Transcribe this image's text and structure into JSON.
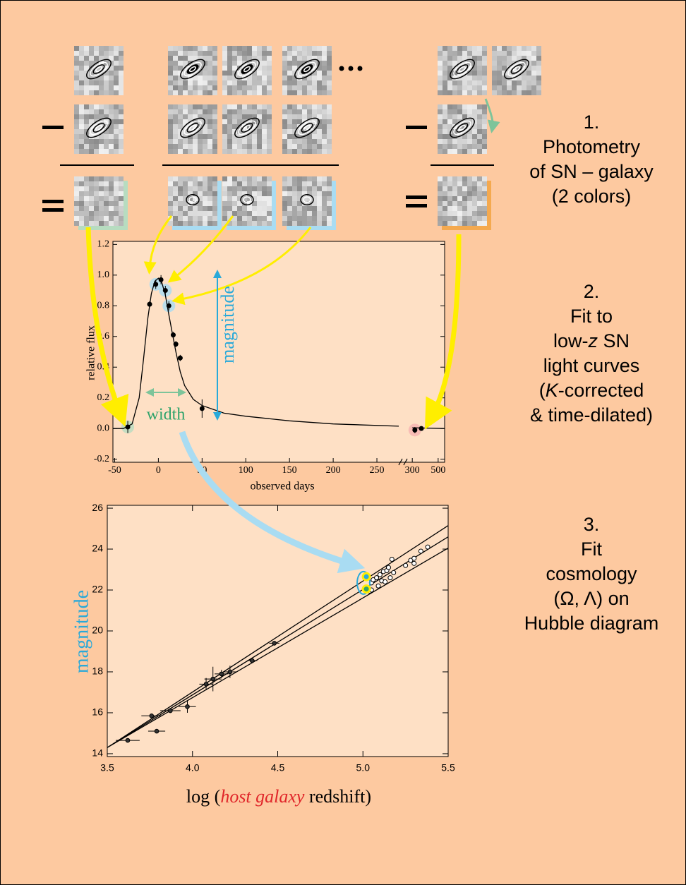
{
  "steps": [
    {
      "number": "1.",
      "lines": [
        "Photometry",
        "of SN – galaxy",
        "(2 colors)"
      ]
    },
    {
      "number": "2.",
      "lines": [
        "Fit to",
        {
          "parts": [
            "low-",
            "z",
            " SN"
          ]
        },
        "light curves",
        {
          "parts": [
            "(",
            "K",
            "-corrected"
          ]
        },
        "& time-dilated)"
      ]
    },
    {
      "number": "3.",
      "lines": [
        "Fit",
        "cosmology",
        "(Ω, Λ) on",
        "Hubble diagram"
      ]
    }
  ],
  "chart_data": [
    {
      "type": "scatter",
      "xlabel": "observed days",
      "ylabel": "relative flux",
      "annotations": [
        "magnitude",
        "width"
      ],
      "xlim_segments": [
        [
          -52,
          275
        ],
        [
          250,
          550
        ]
      ],
      "xticks": [
        -50,
        0,
        50,
        100,
        150,
        200,
        250,
        300,
        500
      ],
      "ylim": [
        -0.22,
        1.22
      ],
      "yticks": [
        -0.2,
        {
          "value": 0,
          "label": "0.0"
        },
        0.2,
        0.4,
        0.6,
        0.8,
        {
          "value": 1,
          "label": "1.0"
        },
        1.2
      ],
      "x": [
        -35,
        -10,
        -3,
        3,
        8,
        12,
        17,
        20,
        25,
        50,
        320,
        370
      ],
      "values": [
        0.01,
        0.81,
        0.94,
        0.97,
        0.9,
        0.8,
        0.61,
        0.55,
        0.46,
        0.13,
        -0.01,
        0.0
      ],
      "errors": [
        0.04,
        0.02,
        0.03,
        0.03,
        0.03,
        0.03,
        0.02,
        0.02,
        0.02,
        0.06,
        0.02,
        0.01
      ],
      "fit": {
        "x": [
          -52,
          -40,
          -30,
          -22,
          -17,
          -12,
          -8,
          -4,
          0,
          4,
          8,
          12,
          16,
          20,
          25,
          30,
          40,
          50,
          75,
          100,
          150,
          200,
          250,
          275,
          278,
          300,
          550
        ],
        "values": [
          0.0,
          0.0,
          0.03,
          0.2,
          0.45,
          0.72,
          0.88,
          0.96,
          0.98,
          0.95,
          0.87,
          0.74,
          0.62,
          0.5,
          0.37,
          0.28,
          0.19,
          0.15,
          0.1,
          0.08,
          0.05,
          0.03,
          0.02,
          0.015,
          null,
          0.005,
          0.0
        ]
      },
      "color": "#000000"
    },
    {
      "type": "scatter",
      "xlabel": {
        "parts": [
          "log (",
          "host galaxy",
          " redshift)"
        ]
      },
      "ylabel": "magnitude",
      "xlim": [
        3.5,
        5.5
      ],
      "ylim": [
        13.86,
        26.14
      ],
      "xticks": [
        3.5,
        {
          "value": 4,
          "label": "4.0"
        },
        4.5,
        {
          "value": 5,
          "label": "5.0"
        },
        5.5
      ],
      "yticks": [
        14,
        16,
        18,
        20,
        22,
        24,
        26
      ],
      "low_z": {
        "x": [
          3.62,
          3.76,
          3.79,
          3.87,
          3.97,
          4.08,
          4.12,
          4.17,
          4.22,
          4.35,
          4.48
        ],
        "values": [
          14.65,
          15.85,
          15.1,
          16.1,
          16.3,
          17.4,
          17.65,
          17.9,
          18.0,
          18.55,
          19.4
        ],
        "xerr": [
          0.07,
          0.06,
          0.05,
          0.06,
          0.05,
          0.04,
          0.05,
          0.04,
          0.04,
          0.03,
          0.03
        ],
        "yerr": [
          0.1,
          0.1,
          0.1,
          0.1,
          0.3,
          0.3,
          0.6,
          0.2,
          0.3,
          0.1,
          0.1
        ]
      },
      "high_z": {
        "x": [
          5.04,
          5.05,
          5.05,
          5.06,
          5.08,
          5.09,
          5.1,
          5.11,
          5.12,
          5.13,
          5.14,
          5.15,
          5.16,
          5.17,
          5.18,
          5.25,
          5.28,
          5.3,
          5.3,
          5.34,
          5.38
        ],
        "values": [
          21.95,
          22.35,
          22.0,
          22.5,
          22.6,
          22.2,
          22.75,
          22.45,
          22.9,
          22.4,
          22.95,
          23.1,
          22.6,
          23.5,
          22.85,
          23.2,
          23.45,
          23.3,
          23.55,
          23.9,
          24.1
        ]
      },
      "highlighted": {
        "x": [
          5.02,
          5.02
        ],
        "values": [
          22.65,
          22.05
        ],
        "colors": [
          "#29a9d9",
          "#2fa36b"
        ]
      },
      "fits": [
        {
          "x": [
            3.5,
            5.5
          ],
          "values": [
            14.3,
            25.15
          ]
        },
        {
          "x": [
            3.5,
            5.5
          ],
          "values": [
            14.3,
            24.6
          ]
        },
        {
          "x": [
            3.5,
            5.5
          ],
          "values": [
            14.3,
            24.05
          ]
        }
      ]
    }
  ]
}
